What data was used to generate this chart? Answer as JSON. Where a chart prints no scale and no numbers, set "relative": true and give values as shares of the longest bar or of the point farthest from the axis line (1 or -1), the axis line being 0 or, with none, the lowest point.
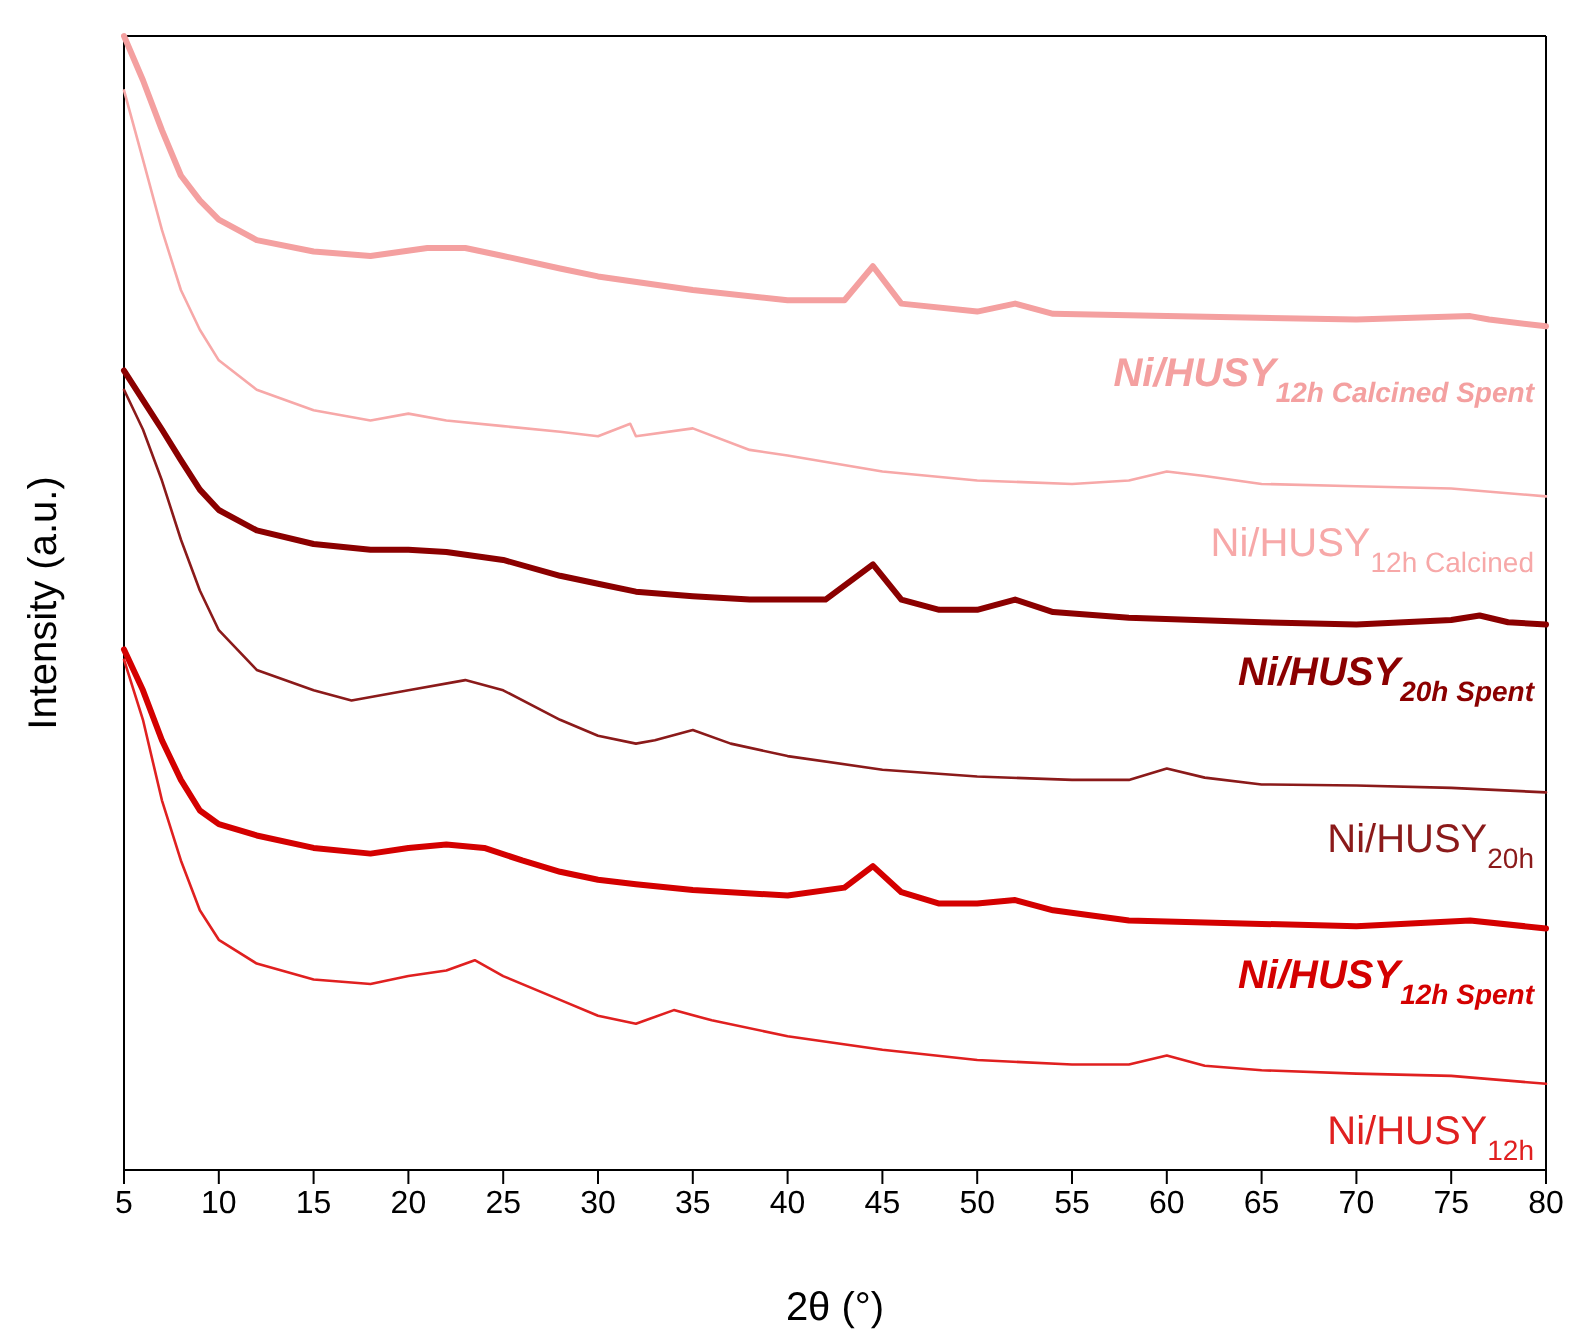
{
  "chart_data": {
    "type": "line",
    "relative": true,
    "xlabel": "2θ (°)",
    "ylabel": "Intensity (a.u.)",
    "xlim": [
      5,
      80
    ],
    "xticks": [
      5,
      10,
      15,
      20,
      25,
      30,
      35,
      40,
      45,
      50,
      55,
      60,
      65,
      70,
      75,
      80
    ],
    "legend": false,
    "grid": false,
    "series": [
      {
        "name": "Ni/HUSY$_{12h Calcined Spent}$",
        "color": "#f4a0a0",
        "x": [
          5,
          6,
          7,
          8,
          9,
          10,
          12,
          15,
          18,
          21,
          23,
          25,
          28,
          30,
          35,
          40,
          43,
          44.5,
          46,
          50,
          52,
          54,
          60,
          70,
          76,
          77,
          80
        ],
        "values": [
          1.0,
          0.961,
          0.917,
          0.877,
          0.855,
          0.838,
          0.82,
          0.81,
          0.806,
          0.813,
          0.813,
          0.806,
          0.795,
          0.788,
          0.776,
          0.767,
          0.767,
          0.797,
          0.764,
          0.757,
          0.764,
          0.755,
          0.753,
          0.75,
          0.753,
          0.75,
          0.744
        ]
      },
      {
        "name": "Ni/HUSY$_{12h Calcined}$",
        "color": "#f7a8a8",
        "x": [
          5,
          6,
          7,
          8,
          9,
          10,
          12,
          15,
          18,
          20,
          22,
          25,
          28,
          30,
          31.7,
          32,
          35,
          38,
          40,
          45,
          50,
          55,
          58,
          60,
          62,
          65,
          70,
          75,
          80
        ],
        "values": [
          0.952,
          0.891,
          0.829,
          0.776,
          0.741,
          0.714,
          0.688,
          0.67,
          0.661,
          0.667,
          0.661,
          0.656,
          0.651,
          0.647,
          0.658,
          0.647,
          0.654,
          0.635,
          0.63,
          0.616,
          0.608,
          0.605,
          0.608,
          0.616,
          0.612,
          0.605,
          0.603,
          0.601,
          0.594
        ]
      },
      {
        "name": "Ni/HUSY$_{20h Spent}$",
        "color": "#8b0000",
        "x": [
          5,
          6,
          7,
          8,
          9,
          10,
          12,
          15,
          18,
          20,
          22,
          25,
          28,
          30,
          32,
          35,
          38,
          42,
          44.5,
          46,
          48,
          50,
          52,
          54,
          58,
          65,
          70,
          75,
          76.5,
          78,
          80
        ],
        "values": [
          0.705,
          0.679,
          0.653,
          0.626,
          0.6,
          0.582,
          0.564,
          0.552,
          0.547,
          0.547,
          0.545,
          0.538,
          0.524,
          0.517,
          0.51,
          0.506,
          0.503,
          0.503,
          0.534,
          0.503,
          0.494,
          0.494,
          0.503,
          0.492,
          0.487,
          0.483,
          0.481,
          0.485,
          0.489,
          0.483,
          0.481
        ]
      },
      {
        "name": "Ni/HUSY$_{20h}$",
        "color": "#8b1a1a",
        "x": [
          5,
          6,
          7,
          8,
          9,
          10,
          12,
          15,
          17,
          20,
          23,
          25,
          28,
          30,
          32,
          33,
          35,
          37,
          40,
          45,
          50,
          55,
          58,
          60,
          62,
          65,
          70,
          75,
          80
        ],
        "values": [
          0.688,
          0.653,
          0.608,
          0.556,
          0.511,
          0.476,
          0.441,
          0.423,
          0.414,
          0.423,
          0.432,
          0.423,
          0.397,
          0.383,
          0.376,
          0.379,
          0.388,
          0.376,
          0.365,
          0.353,
          0.347,
          0.344,
          0.344,
          0.354,
          0.346,
          0.34,
          0.339,
          0.337,
          0.333
        ]
      },
      {
        "name": "Ni/HUSY$_{12h Spent}$",
        "color": "#d40000",
        "x": [
          5,
          6,
          7,
          8,
          9,
          10,
          12,
          15,
          18,
          20,
          22,
          24,
          26,
          28,
          30,
          32,
          35,
          40,
          43,
          44.5,
          46,
          48,
          50,
          52,
          54,
          58,
          65,
          70,
          76,
          80
        ],
        "values": [
          0.459,
          0.423,
          0.379,
          0.344,
          0.317,
          0.305,
          0.295,
          0.284,
          0.279,
          0.284,
          0.287,
          0.284,
          0.273,
          0.263,
          0.256,
          0.252,
          0.247,
          0.242,
          0.249,
          0.268,
          0.245,
          0.235,
          0.235,
          0.238,
          0.229,
          0.22,
          0.217,
          0.215,
          0.22,
          0.213
        ]
      },
      {
        "name": "Ni/HUSY$_{12h}$",
        "color": "#e02020",
        "x": [
          5,
          6,
          7,
          8,
          9,
          10,
          12,
          15,
          18,
          20,
          22,
          23.5,
          25,
          28,
          30,
          32,
          34,
          36,
          40,
          45,
          50,
          55,
          58,
          60,
          62,
          65,
          70,
          75,
          80
        ],
        "values": [
          0.45,
          0.397,
          0.326,
          0.273,
          0.229,
          0.203,
          0.182,
          0.168,
          0.164,
          0.171,
          0.176,
          0.185,
          0.171,
          0.15,
          0.136,
          0.129,
          0.141,
          0.132,
          0.118,
          0.106,
          0.097,
          0.093,
          0.093,
          0.101,
          0.092,
          0.088,
          0.085,
          0.083,
          0.076
        ]
      }
    ]
  }
}
